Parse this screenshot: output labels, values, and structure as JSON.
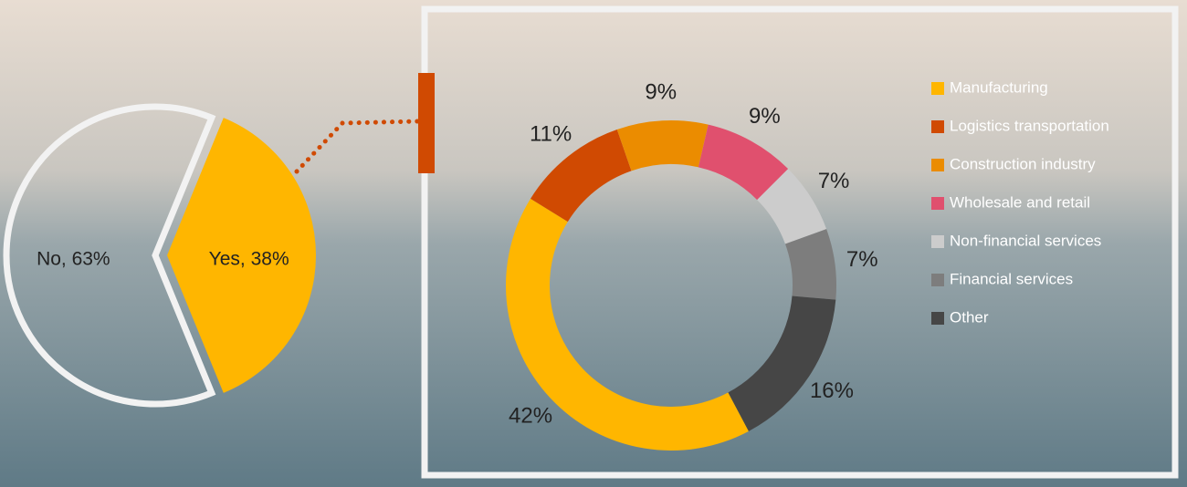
{
  "chart_data": [
    {
      "type": "pie",
      "values": [
        63,
        38
      ],
      "value_labels": [
        "No, 63%",
        "Yes, 38%"
      ],
      "colors": [
        "none",
        "#ffb600"
      ]
    },
    {
      "type": "donut",
      "categories": [
        "Manufacturing",
        "Logistics transportation",
        "Construction industry",
        "Wholesale and retail",
        "Non-financial services",
        "Financial services",
        "Other"
      ],
      "values": [
        42,
        11,
        9,
        9,
        7,
        7,
        16
      ],
      "value_labels": [
        "42%",
        "11%",
        "9%",
        "9%",
        "7%",
        "7%",
        "16%"
      ],
      "colors": [
        "#ffb600",
        "#d04a02",
        "#eb8c00",
        "#e0506e",
        "#cccccc",
        "#7d7d7d",
        "#464646"
      ],
      "legend": "right"
    }
  ]
}
